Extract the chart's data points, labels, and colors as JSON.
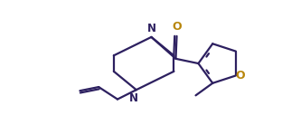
{
  "bg_color": "#ffffff",
  "line_color": "#2d2060",
  "color_O": "#b8860b",
  "color_N": "#2d2060",
  "lw": 1.6,
  "fs": 8.5,
  "xlim": [
    0.0,
    3.12
  ],
  "ylim": [
    0.0,
    1.38
  ]
}
